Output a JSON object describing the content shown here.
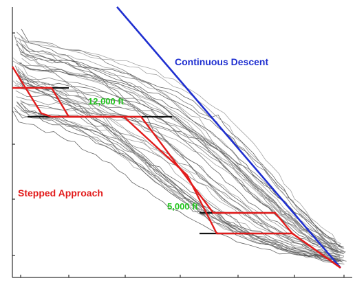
{
  "chart_data": {
    "type": "line",
    "title": "",
    "xlabel": "",
    "ylabel": "",
    "grid": false,
    "annotations": [
      {
        "text": "Continuous Descent",
        "color": "#1f2fd0"
      },
      {
        "text": "12,000 ft",
        "color": "#22c51e"
      },
      {
        "text": "Stepped Approach",
        "color": "#e21b1b"
      },
      {
        "text": "5,000 ft",
        "color": "#22c51e"
      }
    ],
    "series": [
      {
        "style": "continuous-descent",
        "color": "#1f2fd0",
        "values": [
          [
            170,
            10
          ],
          [
            495,
            390
          ]
        ]
      },
      {
        "style": "stepped-approach-upper",
        "color": "#e21b1b",
        "values": [
          [
            18,
            128
          ],
          [
            75,
            128
          ],
          [
            100,
            170
          ],
          [
            205,
            170
          ],
          [
            310,
            310
          ],
          [
            400,
            310
          ],
          [
            425,
            340
          ],
          [
            495,
            390
          ]
        ]
      },
      {
        "style": "stepped-approach-lower",
        "color": "#e21b1b",
        "values": [
          [
            18,
            97
          ],
          [
            60,
            165
          ],
          [
            75,
            170
          ],
          [
            180,
            170
          ],
          [
            272,
            255
          ],
          [
            315,
            340
          ],
          [
            425,
            340
          ],
          [
            495,
            390
          ]
        ]
      },
      {
        "style": "level-off",
        "color": "#111111",
        "values": [
          [
            22,
            128
          ],
          [
            100,
            128
          ]
        ]
      },
      {
        "style": "level-off",
        "color": "#111111",
        "values": [
          [
            40,
            170
          ],
          [
            250,
            170
          ]
        ]
      },
      {
        "style": "level-off",
        "color": "#111111",
        "values": [
          [
            290,
            310
          ],
          [
            400,
            310
          ]
        ]
      },
      {
        "style": "level-off",
        "color": "#111111",
        "values": [
          [
            290,
            340
          ],
          [
            420,
            340
          ]
        ]
      }
    ],
    "track_colors": [
      "#555555",
      "#777777",
      "#999999"
    ]
  }
}
